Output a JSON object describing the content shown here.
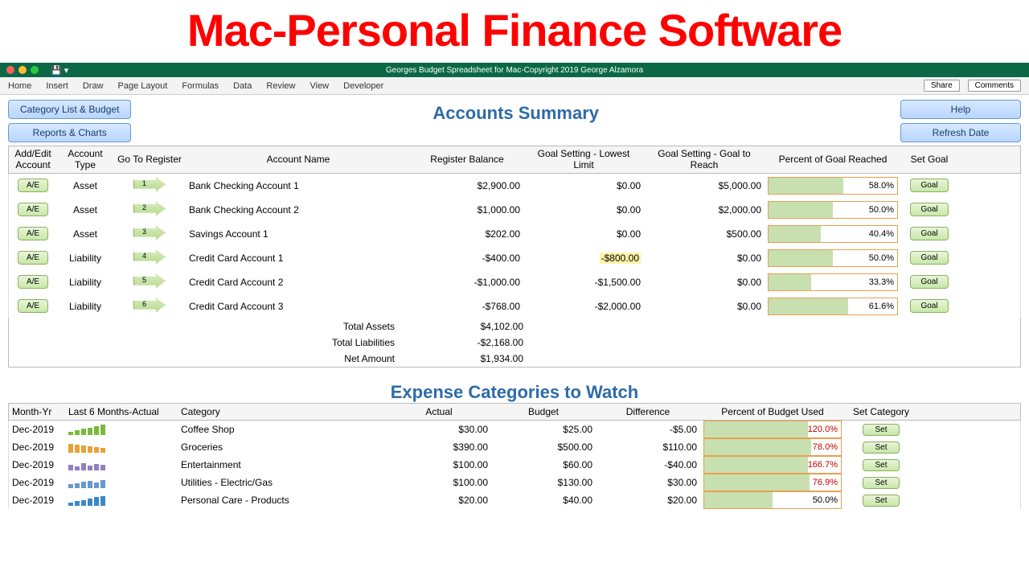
{
  "banner": "Mac-Personal Finance Software",
  "titlebar": {
    "title": "Georges Budget Spreadsheet for Mac-Copyright 2019 George Alzamora"
  },
  "ribbon": {
    "tabs": [
      "Home",
      "Insert",
      "Draw",
      "Page Layout",
      "Formulas",
      "Data",
      "Review",
      "View",
      "Developer"
    ],
    "share": "Share",
    "comments": "Comments"
  },
  "buttons": {
    "category_list": "Category List & Budget",
    "reports": "Reports & Charts",
    "help": "Help",
    "refresh": "Refresh Date"
  },
  "section_title": "Accounts Summary",
  "headers": {
    "ae": "Add/Edit Account",
    "type": "Account Type",
    "goto": "Go To Register",
    "name": "Account Name",
    "bal": "Register Balance",
    "low": "Goal Setting - Lowest Limit",
    "reach": "Goal Setting - Goal to Reach",
    "pct": "Percent of Goal Reached",
    "goal": "Set Goal"
  },
  "ae_label": "A/E",
  "goal_label": "Goal",
  "accounts": [
    {
      "type": "Asset",
      "num": "1",
      "name": "Bank Checking Account 1",
      "bal": "$2,900.00",
      "low": "$0.00",
      "reach": "$5,000.00",
      "pct": "58.0%",
      "pctval": 58
    },
    {
      "type": "Asset",
      "num": "2",
      "name": "Bank Checking Account 2",
      "bal": "$1,000.00",
      "low": "$0.00",
      "reach": "$2,000.00",
      "pct": "50.0%",
      "pctval": 50
    },
    {
      "type": "Asset",
      "num": "3",
      "name": "Savings Account 1",
      "bal": "$202.00",
      "low": "$0.00",
      "reach": "$500.00",
      "pct": "40.4%",
      "pctval": 40.4
    },
    {
      "type": "Liability",
      "num": "4",
      "name": "Credit Card Account 1",
      "bal": "-$400.00",
      "low": "-$800.00",
      "low_hi": true,
      "reach": "$0.00",
      "pct": "50.0%",
      "pctval": 50
    },
    {
      "type": "Liability",
      "num": "5",
      "name": "Credit Card Account 2",
      "bal": "-$1,000.00",
      "low": "-$1,500.00",
      "reach": "$0.00",
      "pct": "33.3%",
      "pctval": 33.3
    },
    {
      "type": "Liability",
      "num": "6",
      "name": "Credit Card Account 3",
      "bal": "-$768.00",
      "low": "-$2,000.00",
      "reach": "$0.00",
      "pct": "61.6%",
      "pctval": 61.6
    }
  ],
  "totals": {
    "assets_lbl": "Total Assets",
    "assets": "$4,102.00",
    "liab_lbl": "Total Liabilities",
    "liab": "-$2,168.00",
    "net_lbl": "Net Amount",
    "net": "$1,934.00"
  },
  "exp_title": "Expense Categories to Watch",
  "exp_headers": {
    "mo": "Month-Yr",
    "sp": "Last 6 Months-Actual",
    "cat": "Category",
    "act": "Actual",
    "bud": "Budget",
    "dif": "Difference",
    "pct": "Percent of Budget Used",
    "set": "Set Category"
  },
  "set_label": "Set",
  "expenses": [
    {
      "mo": "Dec-2019",
      "cat": "Coffee Shop",
      "act": "$30.00",
      "bud": "$25.00",
      "dif": "-$5.00",
      "pct": "120.0%",
      "pctval": 100,
      "red": true,
      "spark": [
        4,
        6,
        8,
        9,
        11,
        13
      ],
      "spark_color": "#7aba3a"
    },
    {
      "mo": "Dec-2019",
      "cat": "Groceries",
      "act": "$390.00",
      "bud": "$500.00",
      "dif": "$110.00",
      "pct": "78.0%",
      "pctval": 78,
      "red": true,
      "spark": [
        11,
        10,
        9,
        8,
        7,
        6
      ],
      "spark_color": "#e8a038"
    },
    {
      "mo": "Dec-2019",
      "cat": "Entertainment",
      "act": "$100.00",
      "bud": "$60.00",
      "dif": "-$40.00",
      "pct": "166.7%",
      "pctval": 100,
      "red": true,
      "spark": [
        7,
        5,
        9,
        6,
        8,
        7
      ],
      "spark_color": "#9080c0"
    },
    {
      "mo": "Dec-2019",
      "cat": "Utilities - Electric/Gas",
      "act": "$100.00",
      "bud": "$130.00",
      "dif": "$30.00",
      "pct": "76.9%",
      "pctval": 76.9,
      "red": true,
      "spark": [
        5,
        6,
        8,
        9,
        7,
        10
      ],
      "spark_color": "#6898d0"
    },
    {
      "mo": "Dec-2019",
      "cat": "Personal Care - Products",
      "act": "$20.00",
      "bud": "$40.00",
      "dif": "$20.00",
      "pct": "50.0%",
      "pctval": 50,
      "red": false,
      "spark": [
        4,
        6,
        7,
        9,
        11,
        12
      ],
      "spark_color": "#3a88c8"
    }
  ]
}
